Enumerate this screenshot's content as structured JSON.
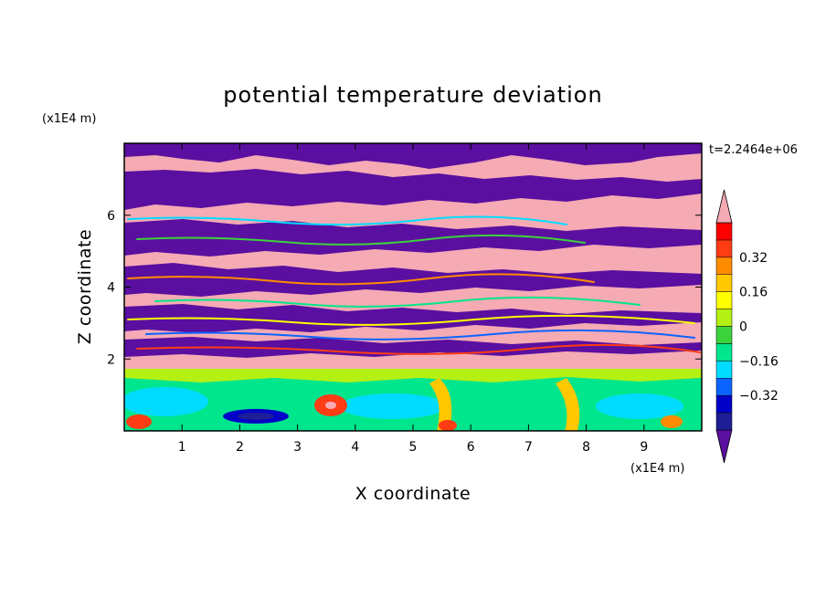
{
  "chart_data": {
    "type": "heatmap",
    "title": "potential temperature deviation",
    "xlabel": "X coordinate",
    "ylabel": "Z coordinate",
    "x_unit": "(x1E4 m)",
    "y_unit": "(x1E4 m)",
    "timestamp": "t=2.2464e+06",
    "xlim": [
      0,
      10
    ],
    "ylim": [
      0,
      8
    ],
    "x_ticks": [
      1,
      2,
      3,
      4,
      5,
      6,
      7,
      8,
      9
    ],
    "x_tick_labels": [
      "1",
      "2",
      "3",
      "4",
      "5",
      "6",
      "7",
      "8",
      "9"
    ],
    "y_ticks": [
      2,
      4,
      6
    ],
    "y_tick_labels": [
      "2",
      "4",
      "6"
    ],
    "colorbar": {
      "levels": [
        -0.48,
        -0.4,
        -0.32,
        -0.24,
        -0.16,
        -0.08,
        0,
        0.08,
        0.16,
        0.24,
        0.32,
        0.4,
        0.48
      ],
      "colors": [
        "#5a0fa0",
        "#1e1e96",
        "#0000c8",
        "#0a64ff",
        "#00dcff",
        "#00e68c",
        "#3cd23c",
        "#b4f014",
        "#ffff00",
        "#ffc800",
        "#ff8c00",
        "#ff3c14",
        "#ff0000",
        "#f5aab4"
      ],
      "tick_values": [
        -0.32,
        -0.16,
        0,
        0.16,
        0.32
      ],
      "tick_labels": [
        "−0.32",
        "−0.16",
        "0",
        "0.16",
        "0.32"
      ],
      "extend": "both"
    },
    "grid": false
  }
}
